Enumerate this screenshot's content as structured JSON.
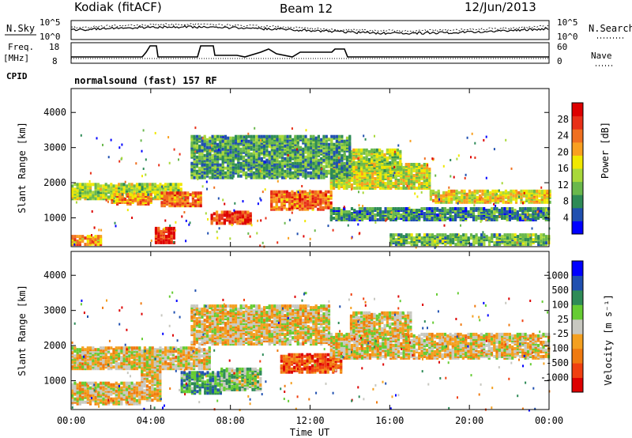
{
  "header": {
    "station": "Kodiak (fitACF)",
    "beam": "Beam 12",
    "date": "12/Jun/2013"
  },
  "summary_panels": {
    "nsky_label": "N.Sky",
    "nsearch_label": "N.Search",
    "log_ticks": [
      "10^5",
      "10^0"
    ],
    "freq_label": "Freq.",
    "freq_unit": "[MHz]",
    "freq_ticks": [
      "18",
      "8"
    ],
    "nave_label": "Nave",
    "nave_ticks": [
      "60",
      "0"
    ],
    "cpid_label": "CPID",
    "cpid_text": "normalsound (fast) 157 RF"
  },
  "chart_data": [
    {
      "type": "heatmap",
      "panel": "power",
      "xlabel": "",
      "ylabel": "Slant Range [km]",
      "y_ticks": [
        1000,
        2000,
        3000,
        4000
      ],
      "ylim": [
        180,
        4680
      ],
      "xlim_hours": [
        0,
        24
      ],
      "colorbar": {
        "label": "Power [dB]",
        "ticks": [
          "28",
          "24",
          "20",
          "16",
          "12",
          "8",
          "4"
        ],
        "colors": [
          "#0000ff",
          "#2050b0",
          "#2e8b57",
          "#6ab84c",
          "#a8d83a",
          "#f0e800",
          "#f9a020",
          "#f07020",
          "#e83018",
          "#dd0000"
        ]
      },
      "bands": [
        {
          "t0": 0.0,
          "t1": 5.5,
          "r0": 1500,
          "r1": 1950,
          "level": 0.45
        },
        {
          "t0": 2.0,
          "t1": 4.0,
          "r0": 1350,
          "r1": 1650,
          "level": 0.7
        },
        {
          "t0": 4.5,
          "t1": 6.5,
          "r0": 1300,
          "r1": 1700,
          "level": 0.75
        },
        {
          "t0": 7.0,
          "t1": 9.0,
          "r0": 800,
          "r1": 1150,
          "level": 0.85
        },
        {
          "t0": 10.0,
          "t1": 13.0,
          "r0": 1200,
          "r1": 1700,
          "level": 0.75
        },
        {
          "t0": 4.2,
          "t1": 5.2,
          "r0": 250,
          "r1": 700,
          "level": 0.9
        },
        {
          "t0": 0.0,
          "t1": 1.5,
          "r0": 200,
          "r1": 450,
          "level": 0.65
        },
        {
          "t0": 13.0,
          "t1": 18.0,
          "r0": 1800,
          "r1": 2500,
          "level": 0.5
        },
        {
          "t0": 14.0,
          "t1": 16.5,
          "r0": 2300,
          "r1": 2900,
          "level": 0.45
        },
        {
          "t0": 18.0,
          "t1": 24.0,
          "r0": 1400,
          "r1": 1750,
          "level": 0.55
        },
        {
          "t0": 13.0,
          "t1": 24.0,
          "r0": 900,
          "r1": 1250,
          "level": 0.25
        },
        {
          "t0": 6.0,
          "t1": 14.0,
          "r0": 2100,
          "r1": 3300,
          "level": 0.3
        },
        {
          "t0": 16.0,
          "t1": 24.0,
          "r0": 200,
          "r1": 500,
          "level": 0.35
        }
      ]
    },
    {
      "type": "heatmap",
      "panel": "velocity",
      "xlabel": "Time UT",
      "ylabel": "Slant Range [km]",
      "y_ticks": [
        1000,
        2000,
        3000,
        4000
      ],
      "ylim": [
        180,
        4680
      ],
      "x_ticks": [
        "00:00",
        "04:00",
        "08:00",
        "12:00",
        "16:00",
        "20:00",
        "00:00"
      ],
      "colorbar": {
        "label": "Velocity [m s⁻¹]",
        "ticks": [
          "1000",
          "500",
          "100",
          "25",
          "-25",
          "-100",
          "-500",
          "-1000"
        ],
        "colors": [
          "#dd0000",
          "#f04010",
          "#f07a10",
          "#f4a020",
          "#c8c8c0",
          "#66cc33",
          "#2e8b57",
          "#2050b0",
          "#0000ff"
        ]
      },
      "bands": [
        {
          "t0": 0.0,
          "t1": 7.0,
          "r0": 1300,
          "r1": 1900,
          "level": 0.45
        },
        {
          "t0": 3.5,
          "t1": 4.5,
          "r0": 400,
          "r1": 1800,
          "level": 0.45
        },
        {
          "t0": 5.5,
          "t1": 7.5,
          "r0": 600,
          "r1": 1200,
          "level": 0.7
        },
        {
          "t0": 7.5,
          "t1": 9.5,
          "r0": 700,
          "r1": 1300,
          "level": 0.6
        },
        {
          "t0": 10.5,
          "t1": 13.5,
          "r0": 1200,
          "r1": 1700,
          "level": 0.2
        },
        {
          "t0": 13.0,
          "t1": 24.0,
          "r0": 1600,
          "r1": 2300,
          "level": 0.45
        },
        {
          "t0": 14.0,
          "t1": 17.0,
          "r0": 2300,
          "r1": 2900,
          "level": 0.45
        },
        {
          "t0": 0.0,
          "t1": 3.5,
          "r0": 300,
          "r1": 900,
          "level": 0.45
        },
        {
          "t0": 6.0,
          "t1": 13.0,
          "r0": 2000,
          "r1": 3100,
          "level": 0.45
        }
      ]
    }
  ]
}
